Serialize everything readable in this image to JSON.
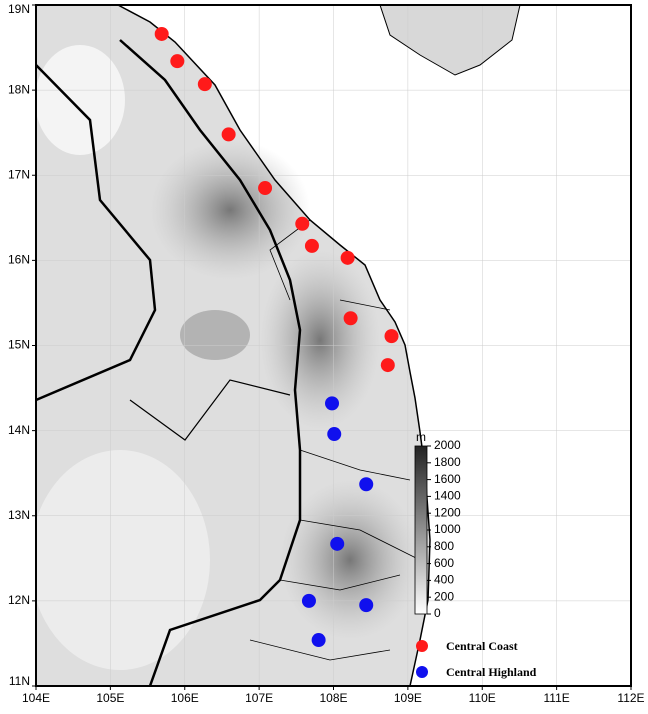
{
  "chart_data": {
    "type": "scatter",
    "xlim": [
      104,
      112
    ],
    "ylim": [
      11,
      19
    ],
    "xticks": [
      {
        "value": 104,
        "label": "104E"
      },
      {
        "value": 105,
        "label": "105E"
      },
      {
        "value": 106,
        "label": "106E"
      },
      {
        "value": 107,
        "label": "107E"
      },
      {
        "value": 108,
        "label": "108E"
      },
      {
        "value": 109,
        "label": "109E"
      },
      {
        "value": 110,
        "label": "110E"
      },
      {
        "value": 111,
        "label": "111E"
      },
      {
        "value": 112,
        "label": "112E"
      }
    ],
    "yticks": [
      {
        "value": 11,
        "label": "11N"
      },
      {
        "value": 12,
        "label": "12N"
      },
      {
        "value": 13,
        "label": "13N"
      },
      {
        "value": 14,
        "label": "14N"
      },
      {
        "value": 15,
        "label": "15N"
      },
      {
        "value": 16,
        "label": "16N"
      },
      {
        "value": 17,
        "label": "17N"
      },
      {
        "value": 18,
        "label": "18N"
      },
      {
        "value": 19,
        "label": "19N"
      }
    ],
    "grid": true,
    "series": [
      {
        "name": "Central Coast",
        "color": "#ff1a1a",
        "x": [
          105.69,
          105.9,
          106.27,
          106.59,
          107.08,
          107.58,
          107.71,
          108.19,
          108.23,
          108.78,
          108.73
        ],
        "values": [
          18.66,
          18.34,
          18.07,
          17.48,
          16.85,
          16.43,
          16.17,
          16.03,
          15.32,
          15.11,
          14.77
        ]
      },
      {
        "name": "Central Highland",
        "color": "#1010ee",
        "x": [
          107.98,
          108.01,
          108.44,
          108.05,
          107.67,
          108.44,
          107.8
        ],
        "values": [
          14.32,
          13.96,
          13.37,
          12.67,
          12.0,
          11.95,
          11.54
        ]
      }
    ],
    "colorbar": {
      "label": "m",
      "lim": [
        0,
        2000
      ],
      "ticks": [
        0,
        200,
        400,
        600,
        800,
        1000,
        1200,
        1400,
        1600,
        1800,
        2000
      ]
    }
  }
}
